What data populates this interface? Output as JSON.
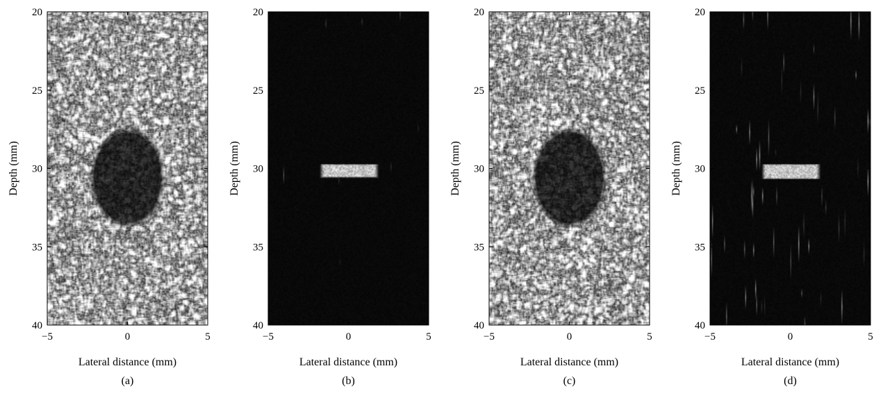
{
  "chart_data": [
    {
      "type": "heatmap",
      "panel_label": "(a)",
      "xlabel": "Lateral distance (mm)",
      "ylabel": "Depth (mm)",
      "xlim": [
        -5,
        5
      ],
      "ylim": [
        20,
        40
      ],
      "y_inverted": true,
      "xticks": [
        "−5",
        "0",
        "5"
      ],
      "yticks": [
        "20",
        "25",
        "30",
        "35",
        "40"
      ],
      "colormap": "gray",
      "background": "speckle",
      "feature": {
        "kind": "anechoic cyst",
        "center_x": 0,
        "center_y": 30.6,
        "radius_x": 2.1,
        "radius_y": 2.9
      }
    },
    {
      "type": "heatmap",
      "panel_label": "(b)",
      "xlabel": "Lateral distance (mm)",
      "ylabel": "Depth (mm)",
      "xlim": [
        -5,
        5
      ],
      "ylim": [
        20,
        40
      ],
      "y_inverted": true,
      "xticks": [
        "−5",
        "0",
        "5"
      ],
      "yticks": [
        "20",
        "25",
        "30",
        "35",
        "40"
      ],
      "colormap": "gray",
      "background": "dark",
      "feature": {
        "kind": "bright bar",
        "x0": -1.8,
        "x1": 1.9,
        "y0": 29.7,
        "y1": 30.6
      }
    },
    {
      "type": "heatmap",
      "panel_label": "(c)",
      "xlabel": "Lateral distance (mm)",
      "ylabel": "Depth (mm)",
      "xlim": [
        -5,
        5
      ],
      "ylim": [
        20,
        40
      ],
      "y_inverted": true,
      "xticks": [
        "−5",
        "0",
        "5"
      ],
      "yticks": [
        "20",
        "25",
        "30",
        "35",
        "40"
      ],
      "colormap": "gray",
      "background": "speckle",
      "feature": {
        "kind": "anechoic cyst",
        "center_x": 0,
        "center_y": 30.6,
        "radius_x": 2.1,
        "radius_y": 2.9
      }
    },
    {
      "type": "heatmap",
      "panel_label": "(d)",
      "xlabel": "Lateral distance (mm)",
      "ylabel": "Depth (mm)",
      "xlim": [
        -5,
        5
      ],
      "ylim": [
        20,
        40
      ],
      "y_inverted": true,
      "xticks": [
        "−5",
        "0",
        "5"
      ],
      "yticks": [
        "20",
        "25",
        "30",
        "35",
        "40"
      ],
      "colormap": "gray",
      "background": "dark-noisy",
      "feature": {
        "kind": "bright bar",
        "x0": -1.8,
        "x1": 1.9,
        "y0": 29.7,
        "y1": 30.7
      }
    }
  ]
}
